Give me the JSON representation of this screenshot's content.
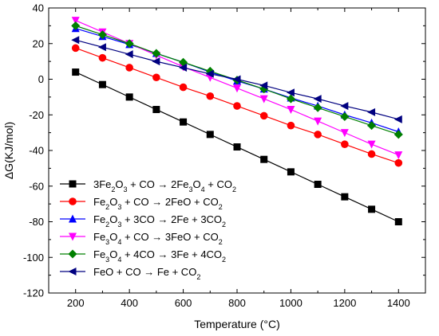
{
  "chart_data": {
    "type": "line",
    "xlabel": "Temperature (°C)",
    "ylabel": "ΔG(KJ/mol)",
    "xlim": [
      100,
      1500
    ],
    "ylim": [
      -120,
      40
    ],
    "xticks": [
      200,
      400,
      600,
      800,
      1000,
      1200,
      1400
    ],
    "yticks": [
      -120,
      -100,
      -80,
      -60,
      -40,
      -20,
      0,
      20,
      40
    ],
    "x": [
      200,
      300,
      400,
      500,
      600,
      700,
      800,
      900,
      1000,
      1100,
      1200,
      1300,
      1400
    ],
    "grid": false,
    "legend_position": "bottom-left",
    "series": [
      {
        "name": "3Fe2O3 + CO → 2Fe3O4 + CO2",
        "label_parts": [
          [
            "3Fe",
            ""
          ],
          [
            "2",
            "sub"
          ],
          [
            "O",
            ""
          ],
          [
            "3",
            "sub"
          ],
          [
            " + CO → 2Fe",
            ""
          ],
          [
            "3",
            "sub"
          ],
          [
            "O",
            ""
          ],
          [
            "4",
            "sub"
          ],
          [
            " + CO",
            ""
          ],
          [
            "2",
            "sub"
          ]
        ],
        "color": "#000000",
        "marker": "square",
        "values": [
          4,
          -3,
          -10,
          -17,
          -24,
          -31,
          -38,
          -45,
          -52,
          -59,
          -66,
          -73,
          -80
        ]
      },
      {
        "name": "Fe2O3 + CO → 2FeO + CO2",
        "label_parts": [
          [
            "Fe",
            ""
          ],
          [
            "2",
            "sub"
          ],
          [
            "O",
            ""
          ],
          [
            "3",
            "sub"
          ],
          [
            " + CO → 2FeO + CO",
            ""
          ],
          [
            "2",
            "sub"
          ]
        ],
        "color": "#ff0000",
        "marker": "circle",
        "values": [
          17.5,
          12,
          6.5,
          1,
          -4.5,
          -9.5,
          -15,
          -20.5,
          -26,
          -31,
          -36.5,
          -42,
          -47
        ]
      },
      {
        "name": "Fe2O3 + 3CO → 2Fe + 3CO2",
        "label_parts": [
          [
            "Fe",
            ""
          ],
          [
            "2",
            "sub"
          ],
          [
            "O",
            ""
          ],
          [
            "3",
            "sub"
          ],
          [
            " + 3CO → 2Fe + 3CO",
            ""
          ],
          [
            "2",
            "sub"
          ]
        ],
        "color": "#0000ff",
        "marker": "triangle-up",
        "values": [
          28.5,
          24,
          19.5,
          14.5,
          9.5,
          4,
          -1,
          -5.5,
          -10.5,
          -15,
          -20,
          -24.5,
          -29.5
        ]
      },
      {
        "name": "Fe3O4 + CO → 3FeO + CO2",
        "label_parts": [
          [
            "Fe",
            ""
          ],
          [
            "3",
            "sub"
          ],
          [
            "O",
            ""
          ],
          [
            "4",
            "sub"
          ],
          [
            " + CO → 3FeO + CO",
            ""
          ],
          [
            "2",
            "sub"
          ]
        ],
        "color": "#ff00ff",
        "marker": "triangle-down",
        "values": [
          33,
          26.5,
          20,
          13.5,
          7,
          1,
          -5,
          -11,
          -17,
          -23.5,
          -30,
          -36.5,
          -42.5
        ]
      },
      {
        "name": "Fe3O4 + 4CO → 3Fe + 4CO2",
        "label_parts": [
          [
            "Fe",
            ""
          ],
          [
            "3",
            "sub"
          ],
          [
            "O",
            ""
          ],
          [
            "4",
            "sub"
          ],
          [
            " + 4CO → 3Fe + 4CO",
            ""
          ],
          [
            "2",
            "sub"
          ]
        ],
        "color": "#008000",
        "marker": "diamond",
        "values": [
          30,
          25,
          20,
          14.5,
          9.5,
          4.5,
          -0.5,
          -5.5,
          -11,
          -16,
          -21,
          -26,
          -31
        ]
      },
      {
        "name": "FeO + CO → Fe + CO2",
        "label_parts": [
          [
            "FeO + CO → Fe + CO",
            ""
          ],
          [
            "2",
            "sub"
          ]
        ],
        "color": "#000080",
        "marker": "triangle-left",
        "values": [
          22,
          18,
          14,
          10,
          6.5,
          3,
          0,
          -3.5,
          -7.5,
          -11,
          -15,
          -18.5,
          -22.5
        ]
      }
    ]
  }
}
